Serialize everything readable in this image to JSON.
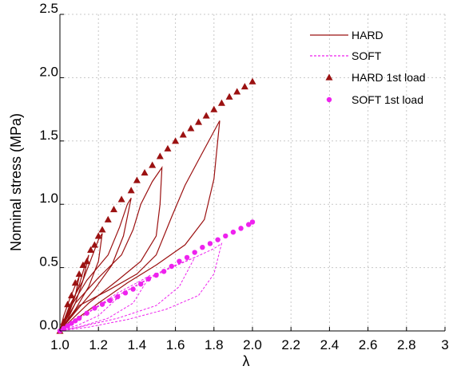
{
  "chart_data": {
    "type": "line",
    "xlabel": "λ",
    "ylabel": "Nominal stress (MPa)",
    "xlim": [
      1.0,
      3.0
    ],
    "ylim": [
      0.0,
      2.5
    ],
    "x_ticks": [
      "1.0",
      "1.2",
      "1.4",
      "1.6",
      "1.8",
      "2.0",
      "2.2",
      "2.4",
      "2.6",
      "2.8",
      "3"
    ],
    "y_ticks": [
      "0.0",
      "0.5",
      "1.0",
      "1.5",
      "2.0",
      "2.5"
    ],
    "grid": true,
    "legend_position": "top-right",
    "colors": {
      "hard": "#9b1111",
      "soft": "#ee22ee"
    },
    "series": [
      {
        "name": "HARD",
        "style": "solid line",
        "color": "#9b1111",
        "cycles": [
          {
            "load": [
              [
                1.0,
                0.0
              ],
              [
                1.02,
                0.12
              ],
              [
                1.05,
                0.25
              ],
              [
                1.08,
                0.36
              ],
              [
                1.1,
                0.43
              ]
            ],
            "unload": [
              [
                1.1,
                0.43
              ],
              [
                1.08,
                0.28
              ],
              [
                1.05,
                0.15
              ],
              [
                1.02,
                0.06
              ],
              [
                1.0,
                0.0
              ]
            ]
          },
          {
            "load": [
              [
                1.0,
                0.0
              ],
              [
                1.05,
                0.18
              ],
              [
                1.1,
                0.36
              ],
              [
                1.13,
                0.52
              ],
              [
                1.15,
                0.6
              ]
            ],
            "unload": [
              [
                1.15,
                0.6
              ],
              [
                1.12,
                0.4
              ],
              [
                1.08,
                0.22
              ],
              [
                1.04,
                0.09
              ],
              [
                1.0,
                0.0
              ]
            ]
          },
          {
            "load": [
              [
                1.0,
                0.0
              ],
              [
                1.05,
                0.2
              ],
              [
                1.12,
                0.4
              ],
              [
                1.17,
                0.6
              ],
              [
                1.2,
                0.72
              ],
              [
                1.22,
                0.77
              ]
            ],
            "unload": [
              [
                1.22,
                0.77
              ],
              [
                1.2,
                0.55
              ],
              [
                1.15,
                0.35
              ],
              [
                1.08,
                0.17
              ],
              [
                1.0,
                0.0
              ]
            ]
          },
          {
            "load": [
              [
                1.0,
                0.0
              ],
              [
                1.06,
                0.2
              ],
              [
                1.14,
                0.4
              ],
              [
                1.25,
                0.6
              ],
              [
                1.31,
                0.82
              ],
              [
                1.35,
                1.0
              ],
              [
                1.37,
                1.05
              ]
            ],
            "unload": [
              [
                1.37,
                1.05
              ],
              [
                1.33,
                0.75
              ],
              [
                1.27,
                0.52
              ],
              [
                1.18,
                0.33
              ],
              [
                1.08,
                0.15
              ],
              [
                1.0,
                0.0
              ]
            ]
          },
          {
            "load": [
              [
                1.0,
                0.0
              ],
              [
                1.08,
                0.22
              ],
              [
                1.2,
                0.42
              ],
              [
                1.32,
                0.6
              ],
              [
                1.38,
                0.8
              ],
              [
                1.42,
                1.0
              ],
              [
                1.48,
                1.18
              ],
              [
                1.53,
                1.29
              ]
            ],
            "unload": [
              [
                1.53,
                1.29
              ],
              [
                1.52,
                1.0
              ],
              [
                1.5,
                0.75
              ],
              [
                1.42,
                0.55
              ],
              [
                1.3,
                0.4
              ],
              [
                1.15,
                0.22
              ],
              [
                1.0,
                0.0
              ]
            ]
          },
          {
            "load": [
              [
                1.0,
                0.0
              ],
              [
                1.1,
                0.2
              ],
              [
                1.25,
                0.32
              ],
              [
                1.4,
                0.45
              ],
              [
                1.5,
                0.6
              ],
              [
                1.58,
                0.9
              ],
              [
                1.65,
                1.15
              ],
              [
                1.72,
                1.35
              ],
              [
                1.78,
                1.52
              ],
              [
                1.83,
                1.66
              ]
            ],
            "unload": [
              [
                1.83,
                1.66
              ],
              [
                1.8,
                1.2
              ],
              [
                1.75,
                0.88
              ],
              [
                1.65,
                0.68
              ],
              [
                1.5,
                0.52
              ],
              [
                1.35,
                0.38
              ],
              [
                1.2,
                0.22
              ],
              [
                1.0,
                0.0
              ]
            ]
          }
        ]
      },
      {
        "name": "SOFT",
        "style": "dashed line",
        "color": "#ee22ee",
        "cycles": [
          {
            "load": [
              [
                1.0,
                0.0
              ],
              [
                1.1,
                0.1
              ],
              [
                1.2,
                0.2
              ],
              [
                1.3,
                0.26
              ]
            ],
            "unload": [
              [
                1.3,
                0.26
              ],
              [
                1.2,
                0.12
              ],
              [
                1.1,
                0.05
              ],
              [
                1.0,
                0.0
              ]
            ]
          },
          {
            "load": [
              [
                1.0,
                0.0
              ],
              [
                1.1,
                0.1
              ],
              [
                1.2,
                0.2
              ],
              [
                1.3,
                0.3
              ],
              [
                1.4,
                0.38
              ],
              [
                1.47,
                0.44
              ]
            ],
            "unload": [
              [
                1.47,
                0.44
              ],
              [
                1.38,
                0.22
              ],
              [
                1.25,
                0.1
              ],
              [
                1.12,
                0.04
              ],
              [
                1.0,
                0.0
              ]
            ]
          },
          {
            "load": [
              [
                1.0,
                0.0
              ],
              [
                1.1,
                0.1
              ],
              [
                1.2,
                0.2
              ],
              [
                1.35,
                0.32
              ],
              [
                1.5,
                0.45
              ],
              [
                1.6,
                0.52
              ],
              [
                1.7,
                0.58
              ]
            ],
            "unload": [
              [
                1.7,
                0.58
              ],
              [
                1.62,
                0.35
              ],
              [
                1.5,
                0.2
              ],
              [
                1.3,
                0.1
              ],
              [
                1.1,
                0.03
              ],
              [
                1.0,
                0.0
              ]
            ]
          },
          {
            "load": [
              [
                1.0,
                0.0
              ],
              [
                1.1,
                0.1
              ],
              [
                1.25,
                0.24
              ],
              [
                1.4,
                0.36
              ],
              [
                1.55,
                0.48
              ],
              [
                1.7,
                0.58
              ],
              [
                1.8,
                0.65
              ],
              [
                1.84,
                0.69
              ]
            ],
            "unload": [
              [
                1.84,
                0.69
              ],
              [
                1.8,
                0.45
              ],
              [
                1.72,
                0.28
              ],
              [
                1.55,
                0.17
              ],
              [
                1.35,
                0.09
              ],
              [
                1.15,
                0.03
              ],
              [
                1.0,
                0.0
              ]
            ]
          }
        ]
      },
      {
        "name": "HARD 1st load",
        "style": "triangle markers",
        "color": "#9b1111",
        "points": [
          [
            1.0,
            0.0
          ],
          [
            1.02,
            0.07
          ],
          [
            1.04,
            0.21
          ],
          [
            1.06,
            0.28
          ],
          [
            1.08,
            0.38
          ],
          [
            1.1,
            0.45
          ],
          [
            1.12,
            0.52
          ],
          [
            1.14,
            0.55
          ],
          [
            1.16,
            0.64
          ],
          [
            1.18,
            0.68
          ],
          [
            1.2,
            0.75
          ],
          [
            1.22,
            0.8
          ],
          [
            1.25,
            0.88
          ],
          [
            1.28,
            0.96
          ],
          [
            1.32,
            1.04
          ],
          [
            1.37,
            1.11
          ],
          [
            1.4,
            1.19
          ],
          [
            1.44,
            1.25
          ],
          [
            1.48,
            1.31
          ],
          [
            1.52,
            1.38
          ],
          [
            1.56,
            1.44
          ],
          [
            1.6,
            1.5
          ],
          [
            1.64,
            1.55
          ],
          [
            1.68,
            1.6
          ],
          [
            1.72,
            1.65
          ],
          [
            1.76,
            1.7
          ],
          [
            1.8,
            1.75
          ],
          [
            1.84,
            1.8
          ],
          [
            1.88,
            1.85
          ],
          [
            1.92,
            1.89
          ],
          [
            1.96,
            1.93
          ],
          [
            2.0,
            1.97
          ]
        ]
      },
      {
        "name": "SOFT 1st load",
        "style": "circle markers",
        "color": "#ee22ee",
        "points": [
          [
            1.0,
            0.0
          ],
          [
            1.02,
            0.02
          ],
          [
            1.04,
            0.04
          ],
          [
            1.06,
            0.06
          ],
          [
            1.08,
            0.08
          ],
          [
            1.1,
            0.1
          ],
          [
            1.14,
            0.14
          ],
          [
            1.18,
            0.18
          ],
          [
            1.22,
            0.21
          ],
          [
            1.26,
            0.24
          ],
          [
            1.3,
            0.27
          ],
          [
            1.34,
            0.3
          ],
          [
            1.38,
            0.33
          ],
          [
            1.42,
            0.37
          ],
          [
            1.46,
            0.41
          ],
          [
            1.5,
            0.44
          ],
          [
            1.54,
            0.47
          ],
          [
            1.58,
            0.51
          ],
          [
            1.62,
            0.55
          ],
          [
            1.66,
            0.58
          ],
          [
            1.7,
            0.62
          ],
          [
            1.74,
            0.66
          ],
          [
            1.78,
            0.69
          ],
          [
            1.82,
            0.72
          ],
          [
            1.86,
            0.75
          ],
          [
            1.9,
            0.78
          ],
          [
            1.94,
            0.81
          ],
          [
            1.98,
            0.84
          ],
          [
            2.0,
            0.86
          ]
        ]
      }
    ]
  }
}
